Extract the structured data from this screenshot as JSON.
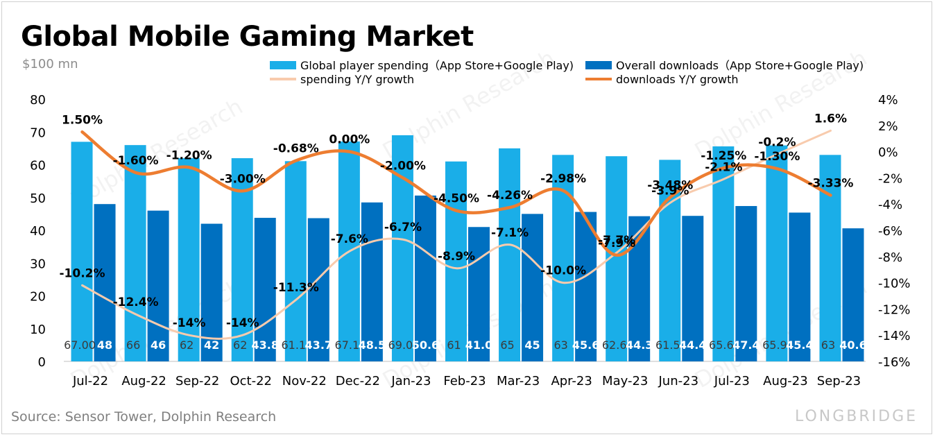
{
  "title": "Global Mobile Gaming Market",
  "unit": "$100 mn",
  "source": "Source: Sensor Tower, Dolphin Research",
  "brand": "LONGBRIDGE",
  "watermark_text": "Dolphin Research",
  "colors": {
    "spending_bar": "#1aaee8",
    "downloads_bar": "#0070c0",
    "spending_growth_line": "#f8cbad",
    "downloads_growth_line": "#ed7d31"
  },
  "chart_data": {
    "type": "bar",
    "categories": [
      "Jul-22",
      "Aug-22",
      "Sep-22",
      "Oct-22",
      "Nov-22",
      "Dec-22",
      "Jan-23",
      "Feb-23",
      "Mar-23",
      "Apr-23",
      "May-23",
      "Jun-23",
      "Jul-23",
      "Aug-23",
      "Sep-23"
    ],
    "y_left": {
      "ylim": [
        0,
        80
      ],
      "ticks": [
        "0",
        "10",
        "20",
        "30",
        "40",
        "50",
        "60",
        "70",
        "80"
      ]
    },
    "y_right": {
      "ylim": [
        -16,
        4
      ],
      "ticks": [
        "4%",
        "2%",
        "0%",
        "-2%",
        "-4%",
        "-6%",
        "-8%",
        "-10%",
        "-12%",
        "-14%",
        "-16%"
      ]
    },
    "legend": [
      "Global player spending（App Store+Google Play)",
      "Overall downloads（App Store+Google Play)",
      "spending Y/Y growth",
      "downloads Y/Y growth"
    ],
    "bar_series": [
      {
        "name": "Global player spending（App Store+Google Play)",
        "values": [
          67.0,
          66,
          62,
          62,
          61.1,
          67.1,
          69.0,
          61,
          65,
          63,
          62.6,
          61.5,
          65.6,
          65.9,
          63
        ],
        "labels": [
          "67.00",
          "66",
          "62",
          "62",
          "61.1",
          "67.1",
          "69.0",
          "61",
          "65",
          "63",
          "62.6",
          "61.5",
          "65.6",
          "65.9",
          "63"
        ]
      },
      {
        "name": "Overall downloads（App Store+Google Play)",
        "values": [
          48,
          46,
          42,
          43.8,
          43.7,
          48.5,
          50.6,
          41.0,
          45,
          45.6,
          44.3,
          44.4,
          47.4,
          45.4,
          40.6
        ],
        "labels": [
          "48",
          "46",
          "42",
          "43.8",
          "43.7",
          "48.5",
          "50.6",
          "41.0",
          "45",
          "45.6",
          "44.3",
          "44.4",
          "47.4",
          "45.4",
          "40.6"
        ]
      }
    ],
    "line_series": [
      {
        "name": "spending Y/Y growth",
        "values": [
          -10.2,
          -12.4,
          -14,
          -14,
          -11.3,
          -7.6,
          -6.7,
          -8.9,
          -7.1,
          -10.0,
          -7.7,
          -3.9,
          -2.1,
          -0.2,
          1.6
        ],
        "labels": [
          "-10.2%",
          "-12.4%",
          "-14%",
          "-14%",
          "-11.3%",
          "-7.6%",
          "-6.7%",
          "-8.9%",
          "-7.1%",
          "-10.0%",
          "-7.7%",
          "-3.9%",
          "-2.1%",
          "-0.2%",
          "1.6%"
        ]
      },
      {
        "name": "downloads Y/Y growth",
        "values": [
          1.5,
          -1.6,
          -1.2,
          -3.0,
          -0.68,
          0.0,
          -2.0,
          -4.5,
          -4.26,
          -2.98,
          -7.9,
          -3.48,
          -1.25,
          -1.3,
          -3.33
        ],
        "labels": [
          "1.50%",
          "-1.60%",
          "-1.20%",
          "-3.00%",
          "-0.68%",
          "0.00%",
          "-2.00%",
          "-4.50%",
          "-4.26%",
          "-2.98%",
          "-7.9%",
          "-3.48%",
          "-1.25%",
          "-1.30%",
          "-3.33%"
        ]
      }
    ]
  }
}
